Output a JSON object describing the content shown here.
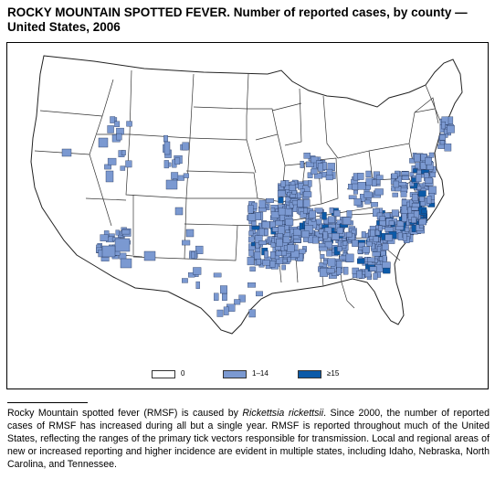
{
  "title": "ROCKY MOUNTAIN SPOTTED FEVER. Number of reported cases, by county — United States, 2006",
  "legend": {
    "items": [
      {
        "label": "0",
        "color": "#ffffff"
      },
      {
        "label": "1–14",
        "color": "#7b99d1"
      },
      {
        "label": "≥15",
        "color": "#0b5aa8"
      }
    ]
  },
  "colors": {
    "none": "#ffffff",
    "low": "#7b99d1",
    "high": "#0b5aa8",
    "border": "#222222"
  },
  "footnote": {
    "before": "Rocky Mountain spotted fever (RMSF) is caused by ",
    "italic": "Rickettsia rickettsii",
    "after": ". Since 2000, the number of reported cases of RMSF has increased during all but a single year. RMSF is reported throughout much of the United States, reflecting the ranges of the primary tick vectors responsible for transmission. Local and regional areas of new or increased reporting and higher incidence are evident in multiple states, including Idaho, Nebraska, North Carolina, and Tennessee."
  }
}
